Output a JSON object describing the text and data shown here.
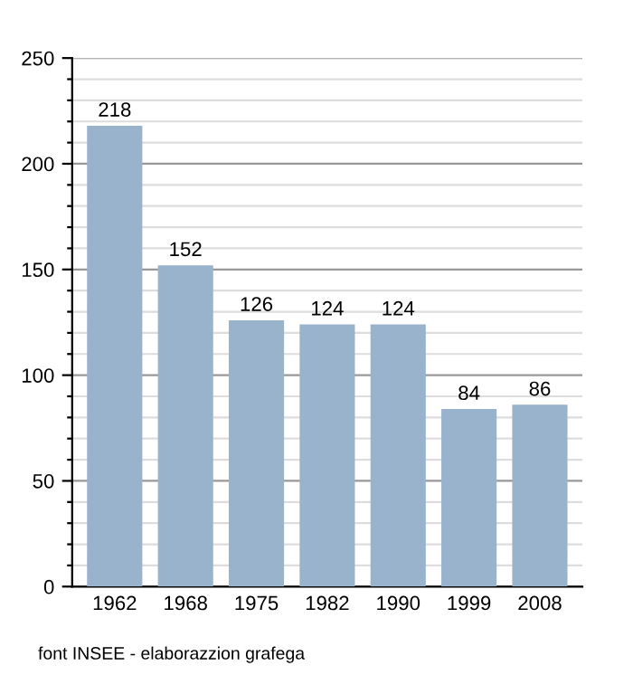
{
  "chart_data": {
    "type": "bar",
    "categories": [
      "1962",
      "1968",
      "1975",
      "1982",
      "1990",
      "1999",
      "2008"
    ],
    "values": [
      218,
      152,
      126,
      124,
      124,
      84,
      86
    ],
    "color": "#9ab3cc",
    "data_labels": true,
    "ylim": [
      0,
      250
    ],
    "yticks": [
      0,
      {
        "value": 10,
        "label": null
      },
      {
        "value": 20,
        "label": null
      },
      {
        "value": 30,
        "label": null
      },
      {
        "value": 40,
        "label": null
      },
      50,
      {
        "value": 60,
        "label": null
      },
      {
        "value": 70,
        "label": null
      },
      {
        "value": 80,
        "label": null
      },
      {
        "value": 90,
        "label": null
      },
      100,
      {
        "value": 110,
        "label": null
      },
      {
        "value": 120,
        "label": null
      },
      {
        "value": 130,
        "label": null
      },
      {
        "value": 140,
        "label": null
      },
      150,
      {
        "value": 160,
        "label": null
      },
      {
        "value": 170,
        "label": null
      },
      {
        "value": 180,
        "label": null
      },
      {
        "value": 190,
        "label": null
      },
      200,
      {
        "value": 210,
        "label": null
      },
      {
        "value": 220,
        "label": null
      },
      {
        "value": 230,
        "label": null
      },
      {
        "value": 240,
        "label": null
      },
      250
    ],
    "grid": "y",
    "annotations": [
      "font INSEE - elaborazzion grafega"
    ]
  }
}
